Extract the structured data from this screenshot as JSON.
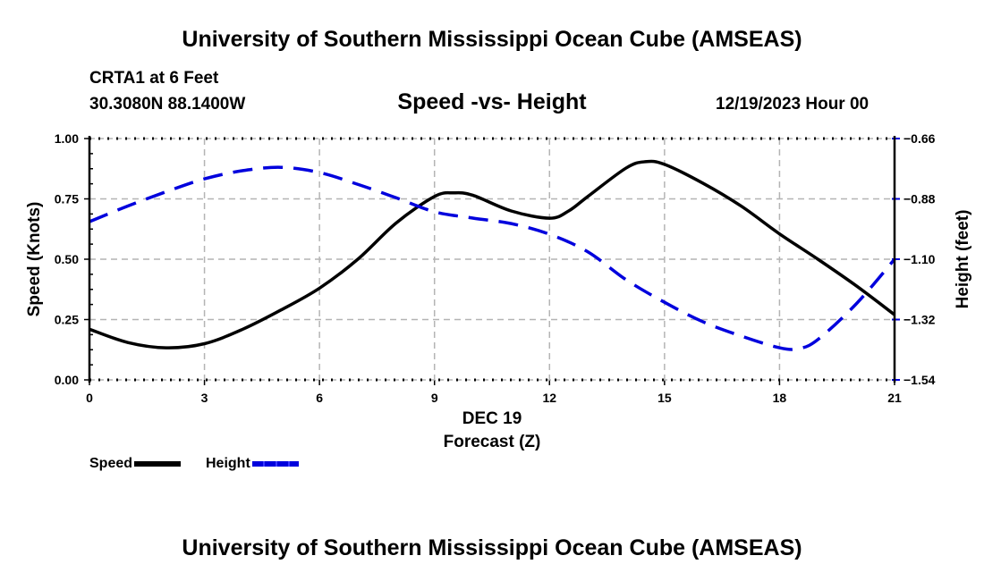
{
  "header": {
    "title": "University of Southern Mississippi Ocean Cube (AMSEAS)",
    "station": "CRTA1 at 6 Feet",
    "coordinates": "30.3080N  88.1400W",
    "subtitle": "Speed -vs- Height",
    "datetime": "12/19/2023 Hour 00"
  },
  "footer": {
    "title": "University of Southern Mississippi Ocean Cube (AMSEAS)"
  },
  "legend": {
    "speed_label": "Speed",
    "height_label": "Height"
  },
  "colors": {
    "speed": "#000000",
    "height": "#0000dd",
    "grid": "#b4b4b4"
  },
  "chart_data": {
    "type": "line",
    "title": "Speed -vs- Height",
    "xlabel": "Forecast (Z)",
    "xlabel_date": "DEC 19",
    "ylabel": "Speed (Knots)",
    "y2label": "Height (feet)",
    "xlim": [
      0,
      21
    ],
    "ylim": [
      0,
      1
    ],
    "y2lim": [
      -1.54,
      -0.66
    ],
    "x_ticks": [
      0,
      3,
      6,
      9,
      12,
      15,
      18,
      21
    ],
    "x_tick_labels": [
      "0",
      "3",
      "6",
      "9",
      "12",
      "15",
      "18",
      "21"
    ],
    "y_ticks": [
      0,
      0.25,
      0.5,
      0.75,
      1.0
    ],
    "y_tick_labels": [
      "0.00",
      "0.25",
      "0.50",
      "0.75",
      "1.00"
    ],
    "y2_ticks": [
      -1.54,
      -1.32,
      -1.1,
      -0.88,
      -0.66
    ],
    "y2_tick_labels": [
      "−1.54",
      "−1.32",
      "−1.10",
      "−0.88",
      "−0.66"
    ],
    "grid": true,
    "legend_position": "bottom-left",
    "series": [
      {
        "name": "Speed",
        "axis": "left",
        "style": "solid",
        "x": [
          0,
          1,
          2,
          3,
          4,
          5,
          6,
          7,
          8,
          9,
          9.5,
          10,
          11,
          12,
          12.5,
          13,
          14,
          14.5,
          15,
          16,
          17,
          18,
          19,
          20,
          21
        ],
        "values": [
          0.21,
          0.155,
          0.133,
          0.15,
          0.21,
          0.29,
          0.38,
          0.5,
          0.65,
          0.76,
          0.775,
          0.765,
          0.7,
          0.67,
          0.7,
          0.76,
          0.878,
          0.904,
          0.893,
          0.815,
          0.72,
          0.605,
          0.5,
          0.39,
          0.27
        ]
      },
      {
        "name": "Height",
        "axis": "right",
        "style": "dashed",
        "x": [
          0,
          1,
          2,
          3,
          4,
          5,
          6,
          7,
          8,
          9,
          10,
          11,
          12,
          13,
          14,
          15,
          16,
          17,
          18,
          18.5,
          19,
          20,
          21
        ],
        "values": [
          -0.963,
          -0.906,
          -0.854,
          -0.807,
          -0.777,
          -0.765,
          -0.784,
          -0.827,
          -0.876,
          -0.927,
          -0.95,
          -0.97,
          -1.009,
          -1.073,
          -1.175,
          -1.257,
          -1.328,
          -1.38,
          -1.423,
          -1.426,
          -1.393,
          -1.263,
          -1.1
        ]
      }
    ]
  }
}
